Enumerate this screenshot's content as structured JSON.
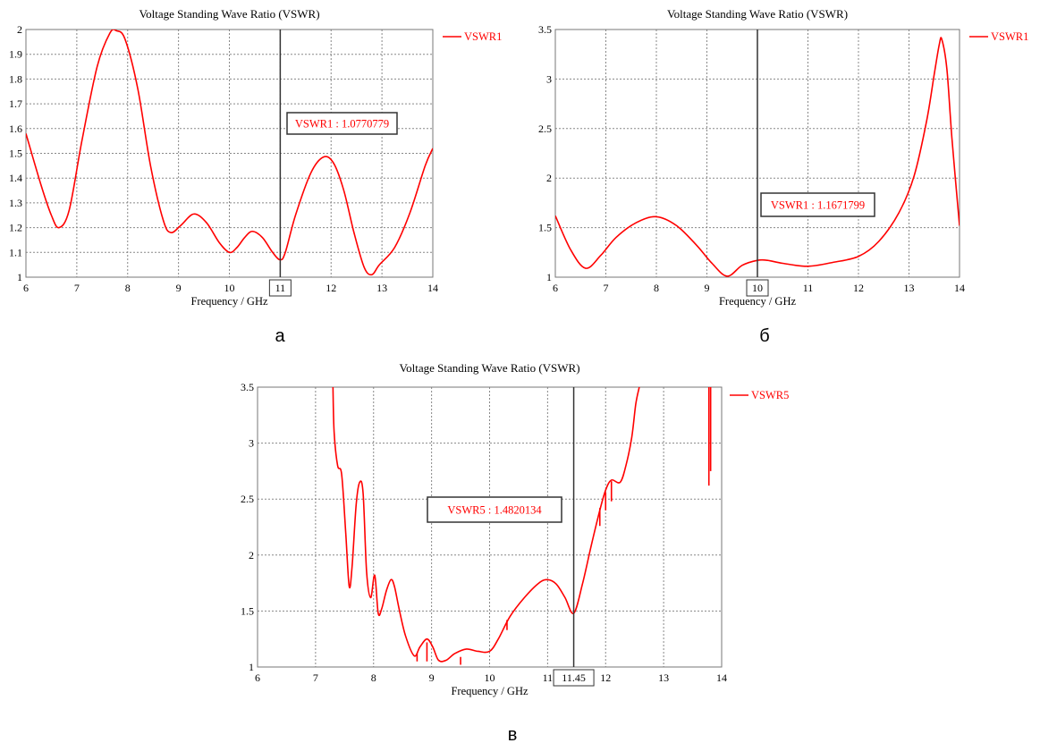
{
  "captions": [
    "а",
    "б",
    "в"
  ],
  "colors": {
    "series": "#ff0000",
    "marker_line": "#333333",
    "grid": "#888888",
    "axis": "#000000"
  },
  "chart_data": [
    {
      "type": "line",
      "title": "Voltage Standing Wave Ratio (VSWR)",
      "xlabel": "Frequency / GHz",
      "ylabel": "",
      "xlim": [
        6,
        14
      ],
      "ylim": [
        1,
        2
      ],
      "x_ticks": [
        6,
        7,
        8,
        9,
        10,
        11,
        12,
        13,
        14
      ],
      "y_ticks": [
        1,
        1.1,
        1.2,
        1.3,
        1.4,
        1.5,
        1.6,
        1.7,
        1.8,
        1.9,
        2
      ],
      "grid": true,
      "legend": "right",
      "series": [
        {
          "name": "VSWR1",
          "x": [
            6.0,
            6.3,
            6.5,
            6.65,
            6.85,
            7.1,
            7.4,
            7.65,
            7.78,
            7.95,
            8.2,
            8.45,
            8.7,
            8.85,
            9.05,
            9.3,
            9.55,
            9.8,
            10.0,
            10.15,
            10.3,
            10.45,
            10.65,
            10.85,
            11.0,
            11.1,
            11.3,
            11.6,
            11.85,
            12.05,
            12.25,
            12.45,
            12.65,
            12.8,
            12.95,
            13.25,
            13.55,
            13.85,
            14.0
          ],
          "values": [
            1.58,
            1.37,
            1.25,
            1.2,
            1.27,
            1.55,
            1.85,
            1.985,
            1.995,
            1.96,
            1.76,
            1.45,
            1.23,
            1.18,
            1.21,
            1.255,
            1.22,
            1.14,
            1.1,
            1.12,
            1.16,
            1.185,
            1.16,
            1.1,
            1.07,
            1.1,
            1.25,
            1.42,
            1.485,
            1.46,
            1.35,
            1.18,
            1.04,
            1.01,
            1.05,
            1.12,
            1.26,
            1.45,
            1.52
          ]
        }
      ],
      "marker": {
        "x": 11,
        "x_label": "11",
        "label": "VSWR1 : 1.0770779"
      }
    },
    {
      "type": "line",
      "title": "Voltage Standing Wave Ratio (VSWR)",
      "xlabel": "Frequency / GHz",
      "ylabel": "",
      "xlim": [
        6,
        14
      ],
      "ylim": [
        1,
        3.5
      ],
      "x_ticks": [
        6,
        7,
        8,
        9,
        10,
        11,
        12,
        13,
        14
      ],
      "y_ticks": [
        1,
        1.5,
        2,
        2.5,
        3,
        3.5
      ],
      "grid": true,
      "legend": "right",
      "series": [
        {
          "name": "VSWR1",
          "x": [
            6.0,
            6.3,
            6.6,
            6.9,
            7.2,
            7.6,
            8.0,
            8.4,
            8.8,
            9.1,
            9.4,
            9.7,
            10.0,
            10.2,
            10.5,
            11.0,
            11.5,
            12.0,
            12.4,
            12.8,
            13.1,
            13.35,
            13.5,
            13.6,
            13.65,
            13.75,
            13.85,
            14.0
          ],
          "values": [
            1.62,
            1.28,
            1.09,
            1.22,
            1.4,
            1.55,
            1.61,
            1.52,
            1.32,
            1.14,
            1.01,
            1.12,
            1.17,
            1.17,
            1.14,
            1.11,
            1.15,
            1.21,
            1.36,
            1.65,
            2.02,
            2.58,
            3.05,
            3.35,
            3.4,
            3.1,
            2.4,
            1.52
          ]
        }
      ],
      "marker": {
        "x": 10,
        "x_label": "10",
        "label": "VSWR1 : 1.1671799"
      }
    },
    {
      "type": "line",
      "title": "Voltage Standing Wave Ratio (VSWR)",
      "xlabel": "Frequency / GHz",
      "ylabel": "",
      "xlim": [
        6,
        14
      ],
      "ylim": [
        1,
        3.5
      ],
      "x_ticks": [
        6,
        7,
        8,
        9,
        10,
        11,
        12,
        13,
        14
      ],
      "x_tick_labels": [
        "6",
        "7",
        "8",
        "9",
        "10",
        "11",
        "12",
        "13",
        "14"
      ],
      "y_ticks": [
        1,
        1.5,
        2,
        2.5,
        3,
        3.5
      ],
      "grid": true,
      "legend": "right",
      "series": [
        {
          "name": "VSWR5",
          "x": [
            7.3,
            7.32,
            7.38,
            7.45,
            7.52,
            7.58,
            7.63,
            7.7,
            7.76,
            7.82,
            7.88,
            7.95,
            8.02,
            8.08,
            8.14,
            8.22,
            8.3,
            8.36,
            8.44,
            8.55,
            8.7,
            8.8,
            8.92,
            9.02,
            9.12,
            9.25,
            9.4,
            9.6,
            9.8,
            10.0,
            10.15,
            10.35,
            10.6,
            10.85,
            11.0,
            11.15,
            11.3,
            11.45,
            11.6,
            11.75,
            11.9,
            12.0,
            12.1,
            12.25,
            12.35,
            12.45,
            12.52,
            12.58
          ],
          "values": [
            3.5,
            3.1,
            2.8,
            2.72,
            2.2,
            1.72,
            1.9,
            2.45,
            2.65,
            2.55,
            1.85,
            1.62,
            1.82,
            1.48,
            1.52,
            1.68,
            1.78,
            1.72,
            1.52,
            1.28,
            1.1,
            1.18,
            1.25,
            1.18,
            1.06,
            1.06,
            1.12,
            1.16,
            1.14,
            1.14,
            1.25,
            1.45,
            1.62,
            1.75,
            1.78,
            1.74,
            1.62,
            1.48,
            1.74,
            2.08,
            2.4,
            2.58,
            2.67,
            2.65,
            2.8,
            3.05,
            3.35,
            3.5
          ]
        }
      ],
      "spikes": [
        {
          "x": 8.75,
          "from": 1.12,
          "to": 1.05
        },
        {
          "x": 8.92,
          "from": 1.22,
          "to": 1.05
        },
        {
          "x": 9.5,
          "from": 1.09,
          "to": 1.02
        },
        {
          "x": 10.3,
          "from": 1.33,
          "to": 1.42
        },
        {
          "x": 11.9,
          "from": 2.42,
          "to": 2.26
        },
        {
          "x": 12.0,
          "from": 2.56,
          "to": 2.4
        },
        {
          "x": 12.1,
          "from": 2.66,
          "to": 2.48
        },
        {
          "x": 13.78,
          "from": 3.5,
          "to": 2.62
        },
        {
          "x": 13.81,
          "from": 3.5,
          "to": 2.75
        }
      ],
      "marker": {
        "x": 11.45,
        "x_label": "11.45",
        "label": "VSWR5 : 1.4820134"
      }
    }
  ]
}
